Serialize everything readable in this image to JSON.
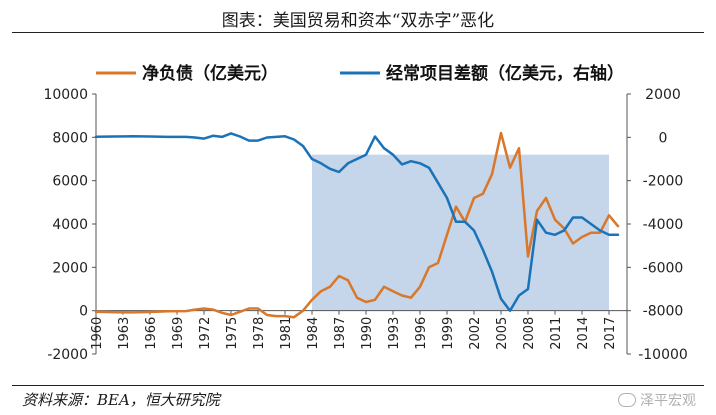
{
  "header": {
    "title": "图表：美国贸易和资本“双赤字”恶化"
  },
  "footer": {
    "source": "资料来源：BEA，恒大研究院",
    "watermark": "泽平宏观"
  },
  "chart_data": {
    "type": "line",
    "legend_position": "top",
    "grid": false,
    "x_ticks": [
      "1960",
      "1963",
      "1966",
      "1969",
      "1972",
      "1975",
      "1978",
      "1981",
      "1984",
      "1987",
      "1990",
      "1993",
      "1996",
      "1999",
      "2002",
      "2005",
      "2008",
      "2011",
      "2014",
      "2017"
    ],
    "xlim": [
      1960,
      2019
    ],
    "y_left": {
      "ticks": [
        "-2000",
        "0",
        "2000",
        "4000",
        "6000",
        "8000",
        "10000"
      ],
      "lim": [
        -2000,
        10000
      ]
    },
    "y_right": {
      "ticks": [
        "-10000",
        "-8000",
        "-6000",
        "-4000",
        "-2000",
        "0",
        "2000"
      ],
      "lim": [
        -10000,
        2000
      ]
    },
    "shaded_region": {
      "x": [
        1984,
        2017
      ],
      "y_left": [
        0,
        7200
      ]
    },
    "series": [
      {
        "name": "净负债（亿美元）",
        "axis": "left",
        "color": "#d9772b",
        "x": [
          1960,
          1962,
          1964,
          1966,
          1968,
          1970,
          1971,
          1972,
          1973,
          1974,
          1975,
          1976,
          1977,
          1978,
          1979,
          1980,
          1981,
          1982,
          1983,
          1984,
          1985,
          1986,
          1987,
          1988,
          1989,
          1990,
          1991,
          1992,
          1993,
          1994,
          1995,
          1996,
          1997,
          1998,
          1999,
          2000,
          2001,
          2002,
          2003,
          2004,
          2005,
          2006,
          2007,
          2008,
          2009,
          2010,
          2011,
          2012,
          2013,
          2014,
          2015,
          2016,
          2017,
          2018
        ],
        "values": [
          -50,
          -70,
          -80,
          -60,
          -30,
          -20,
          50,
          100,
          50,
          -100,
          -200,
          -50,
          100,
          100,
          -200,
          -250,
          -250,
          -300,
          0,
          500,
          900,
          1100,
          1600,
          1400,
          600,
          400,
          500,
          1100,
          900,
          700,
          600,
          1100,
          2000,
          2200,
          3500,
          4800,
          4100,
          5200,
          5400,
          6300,
          8200,
          6600,
          7500,
          2500,
          4600,
          5200,
          4200,
          3800,
          3100,
          3400,
          3600,
          3600,
          4400,
          3900
        ]
      },
      {
        "name": "经常项目差额（亿美元，右轴）",
        "axis": "right",
        "color": "#1a73b8",
        "x": [
          1960,
          1962,
          1964,
          1966,
          1968,
          1970,
          1971,
          1972,
          1973,
          1974,
          1975,
          1976,
          1977,
          1978,
          1979,
          1980,
          1981,
          1982,
          1983,
          1984,
          1985,
          1986,
          1987,
          1988,
          1989,
          1990,
          1991,
          1992,
          1993,
          1994,
          1995,
          1996,
          1997,
          1998,
          1999,
          2000,
          2001,
          2002,
          2003,
          2004,
          2005,
          2006,
          2007,
          2008,
          2009,
          2010,
          2011,
          2012,
          2013,
          2014,
          2015,
          2016,
          2017,
          2018
        ],
        "values": [
          30,
          40,
          50,
          40,
          20,
          20,
          -10,
          -60,
          70,
          20,
          180,
          40,
          -150,
          -150,
          -10,
          20,
          50,
          -100,
          -400,
          -1000,
          -1200,
          -1450,
          -1600,
          -1200,
          -1000,
          -800,
          40,
          -500,
          -800,
          -1250,
          -1100,
          -1200,
          -1400,
          -2100,
          -2800,
          -3900,
          -3900,
          -4300,
          -5200,
          -6200,
          -7450,
          -8000,
          -7300,
          -7000,
          -3800,
          -4400,
          -4500,
          -4300,
          -3700,
          -3700,
          -4000,
          -4300,
          -4500,
          -4500
        ]
      }
    ]
  }
}
